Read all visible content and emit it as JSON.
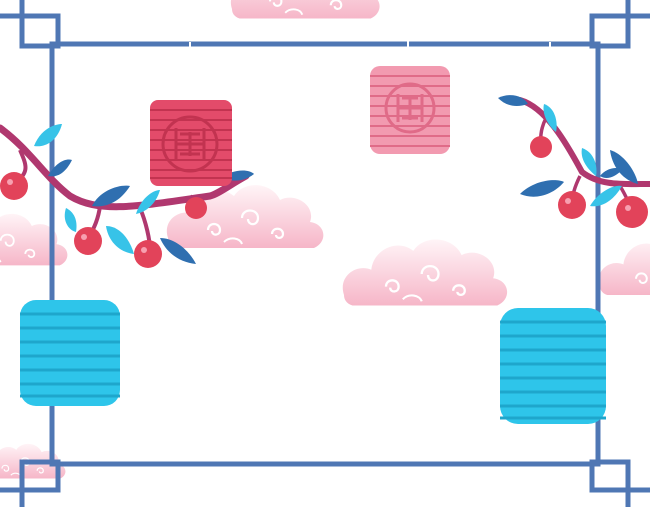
{
  "scene": {
    "description_free": true,
    "colors": {
      "frame": "#4f77b4",
      "cloud_light": "#fde3ea",
      "cloud_mid": "#f7bfcf",
      "cloud_swirl": "#ffffff",
      "lantern_red": "#e34b6a",
      "lantern_red_dark": "#c23350",
      "lantern_pink": "#f29ab0",
      "lantern_pink_dark": "#e06b88",
      "lantern_cyan": "#2ec5ea",
      "lantern_cyan_dark": "#1ea6cc",
      "branch": "#b0386f",
      "berry": "#e2435a",
      "leaf_cyan": "#37c3e8",
      "leaf_blue": "#2f6fb0"
    },
    "icons": [
      "corner-frame-icon",
      "red-lantern-icon",
      "pink-lantern-icon",
      "cyan-lantern-icon",
      "cloud-icon",
      "cherry-branch-icon"
    ]
  }
}
